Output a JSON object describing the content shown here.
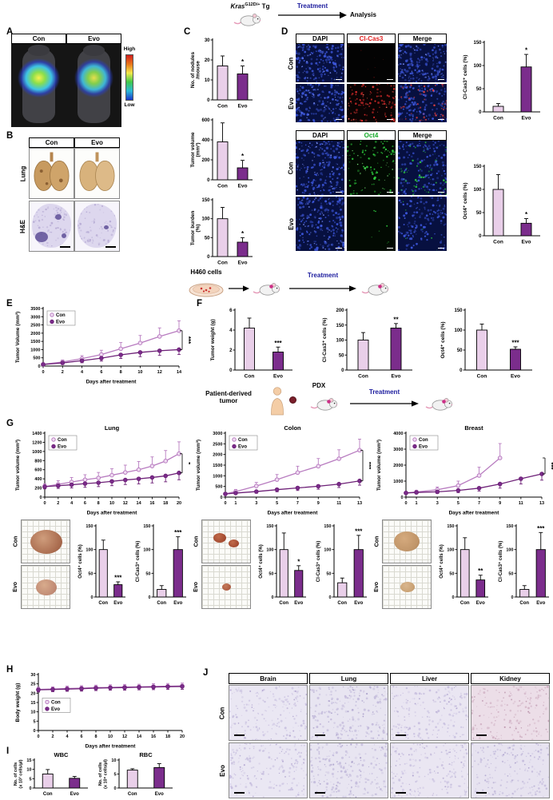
{
  "colors": {
    "con_fill": "#e9cfe9",
    "evo_fill": "#7b2d8c",
    "con_line": "#b87cc0",
    "evo_line": "#6d2077",
    "con_marker": "#f0dcf2",
    "axis": "#000000",
    "treatment_blue": "#1c1c9e",
    "clcas3_red": "#e32121",
    "oct4_green": "#16a82a"
  },
  "panels": {
    "A": "A",
    "B": "B",
    "C": "C",
    "D": "D",
    "E": "E",
    "F": "F",
    "G": "G",
    "H": "H",
    "I": "I",
    "J": "J"
  },
  "schematic_top": {
    "kras_italic": "Kras",
    "kras_sup": "G12D/+",
    "kras_tail": " Tg",
    "treatment": "Treatment",
    "analysis": "Analysis"
  },
  "schematic_mid": {
    "cells": "H460 cells",
    "treatment": "Treatment"
  },
  "schematic_pdx": {
    "source_line1": "Patient-derived",
    "source_line2": "tumor",
    "pdx": "PDX",
    "treatment": "Treatment"
  },
  "panelA": {
    "col_headers": [
      "Con",
      "Evo"
    ],
    "scale_high": "High",
    "scale_low": "Low"
  },
  "panelB": {
    "col_headers": [
      "Con",
      "Evo"
    ],
    "row_labels": [
      "Lung",
      "H&E"
    ]
  },
  "panelD": {
    "upper_headers": [
      "DAPI",
      "Cl-Cas3",
      "Merge"
    ],
    "lower_headers": [
      "DAPI",
      "Oct4",
      "Merge"
    ],
    "row_labels": [
      "Con",
      "Evo"
    ]
  },
  "panelG": {
    "photo_row_labels": [
      "Con",
      "Evo"
    ]
  },
  "panelJ": {
    "col_headers": [
      "Brain",
      "Lung",
      "Liver",
      "Kidney"
    ],
    "row_labels": [
      "Con",
      "Evo"
    ]
  },
  "chart_data": [
    {
      "id": "c_nodules",
      "type": "bar",
      "ylabel": "No. of nodules",
      "ylabel2": "/mouse",
      "ylim": [
        0,
        30
      ],
      "yticks": [
        0,
        10,
        20,
        30
      ],
      "categories": [
        "Con",
        "Evo"
      ],
      "values": [
        17,
        13
      ],
      "errors": [
        5,
        4
      ],
      "sig": "*",
      "ml": 30,
      "mr": 8,
      "mt": 8,
      "mb": 15
    },
    {
      "id": "c_volume",
      "type": "bar",
      "ylabel": "Tumor volume",
      "ylabel2": "(mm³)",
      "ylim": [
        0,
        600
      ],
      "yticks": [
        0,
        200,
        400,
        600
      ],
      "categories": [
        "Con",
        "Evo"
      ],
      "values": [
        380,
        120
      ],
      "errors": [
        190,
        75
      ],
      "sig": "*",
      "ml": 30,
      "mr": 8,
      "mt": 8,
      "mb": 15
    },
    {
      "id": "c_burden",
      "type": "bar",
      "ylabel": "Tumor burden",
      "ylabel2": "(%)",
      "ylim": [
        0,
        150
      ],
      "yticks": [
        0,
        50,
        100,
        150
      ],
      "categories": [
        "Con",
        "Evo"
      ],
      "values": [
        100,
        38
      ],
      "errors": [
        30,
        12
      ],
      "sig": "*",
      "ml": 30,
      "mr": 8,
      "mt": 8,
      "mb": 15
    },
    {
      "id": "d_clcas3",
      "type": "bar",
      "ylabel": "Cl-Cas3⁺ cells (%)",
      "ylim": [
        0,
        150
      ],
      "yticks": [
        0,
        50,
        100,
        150
      ],
      "categories": [
        "Con",
        "Evo"
      ],
      "values": [
        12,
        97
      ],
      "errors": [
        6,
        27
      ],
      "sig": "*",
      "ml": 32,
      "mr": 16,
      "mt": 8,
      "mb": 15
    },
    {
      "id": "d_oct4",
      "type": "bar",
      "ylabel": "Oct4⁺ cells (%)",
      "ylim": [
        0,
        150
      ],
      "yticks": [
        0,
        50,
        100,
        150
      ],
      "categories": [
        "Con",
        "Evo"
      ],
      "values": [
        100,
        27
      ],
      "errors": [
        32,
        10
      ],
      "sig": "*",
      "ml": 32,
      "mr": 16,
      "mt": 8,
      "mb": 15
    },
    {
      "id": "e_volume",
      "type": "line",
      "ylabel": "Tumor Volume (mm³)",
      "xlabel": "Days after treatment",
      "x": [
        0,
        2,
        4,
        6,
        8,
        10,
        12,
        14
      ],
      "ylim": [
        0,
        3500
      ],
      "yticks": [
        0,
        500,
        1000,
        1500,
        2000,
        2500,
        3000,
        3500
      ],
      "series": [
        {
          "name": "Con",
          "values": [
            100,
            250,
            450,
            700,
            1050,
            1400,
            1800,
            2150
          ],
          "errors": [
            60,
            120,
            180,
            260,
            380,
            460,
            520,
            600
          ]
        },
        {
          "name": "Evo",
          "values": [
            100,
            190,
            330,
            480,
            680,
            830,
            930,
            1000
          ],
          "errors": [
            50,
            90,
            130,
            180,
            220,
            260,
            280,
            300
          ]
        }
      ],
      "sig": "***",
      "legend": true,
      "legend_pos": "tl",
      "ml": 40,
      "mr": 16,
      "mt": 6,
      "mb": 24,
      "tfs": 5.5
    },
    {
      "id": "f_weight",
      "type": "bar",
      "ylabel": "Tumor weight (g)",
      "ylim": [
        0,
        6
      ],
      "yticks": [
        0,
        2,
        4,
        6
      ],
      "categories": [
        "Con",
        "Evo"
      ],
      "values": [
        4.2,
        1.8
      ],
      "errors": [
        1.0,
        0.5
      ],
      "sig": "***",
      "ml": 36,
      "mr": 26,
      "mt": 8,
      "mb": 15
    },
    {
      "id": "f_clcas3",
      "type": "bar",
      "ylabel": "Cl-Cas3⁺ cells (%)",
      "ylim": [
        0,
        200
      ],
      "yticks": [
        0,
        50,
        100,
        150,
        200
      ],
      "categories": [
        "Con",
        "Evo"
      ],
      "values": [
        100,
        140
      ],
      "errors": [
        25,
        15
      ],
      "sig": "**",
      "ml": 36,
      "mr": 26,
      "mt": 8,
      "mb": 15
    },
    {
      "id": "f_oct4",
      "type": "bar",
      "ylabel": "Oct4⁺ cells (%)",
      "ylim": [
        0,
        150
      ],
      "yticks": [
        0,
        50,
        100,
        150
      ],
      "categories": [
        "Con",
        "Evo"
      ],
      "values": [
        100,
        52
      ],
      "errors": [
        15,
        6
      ],
      "sig": "***",
      "ml": 36,
      "mr": 26,
      "mt": 8,
      "mb": 15
    },
    {
      "id": "g_lung",
      "type": "line",
      "title": "Lung",
      "ylabel": "Tumor volume (mm³)",
      "xlabel": "Days after treatment",
      "x": [
        0,
        2,
        4,
        6,
        8,
        10,
        12,
        14,
        16,
        18,
        20
      ],
      "ylim": [
        0,
        1400
      ],
      "yticks": [
        0,
        200,
        400,
        600,
        800,
        1000,
        1200,
        1400
      ],
      "series": [
        {
          "name": "Con",
          "values": [
            230,
            280,
            330,
            380,
            420,
            480,
            540,
            600,
            680,
            790,
            950
          ],
          "errors": [
            60,
            80,
            100,
            110,
            120,
            140,
            160,
            180,
            200,
            230,
            260
          ]
        },
        {
          "name": "Evo",
          "values": [
            230,
            250,
            270,
            295,
            315,
            345,
            375,
            400,
            430,
            465,
            530
          ],
          "errors": [
            50,
            60,
            70,
            80,
            85,
            95,
            100,
            110,
            120,
            130,
            150
          ]
        }
      ],
      "sig": "*",
      "legend": true,
      "legend_pos": "tl",
      "ml": 42,
      "mr": 14,
      "mt": 14,
      "mb": 24,
      "tfs": 5.5
    },
    {
      "id": "g_colon",
      "type": "line",
      "title": "Colon",
      "ylabel": "Tumor volume (mm³)",
      "xlabel": "Days after treatment",
      "x": [
        0,
        1,
        3,
        5,
        7,
        9,
        11,
        13
      ],
      "ylim": [
        0,
        3000
      ],
      "yticks": [
        0,
        500,
        1000,
        1500,
        2000,
        2500,
        3000
      ],
      "series": [
        {
          "name": "Con",
          "values": [
            150,
            260,
            520,
            820,
            1150,
            1450,
            1800,
            2200
          ],
          "errors": [
            60,
            100,
            170,
            240,
            300,
            360,
            420,
            520
          ]
        },
        {
          "name": "Evo",
          "values": [
            150,
            190,
            260,
            350,
            430,
            510,
            610,
            760
          ],
          "errors": [
            40,
            60,
            80,
            100,
            120,
            140,
            160,
            200
          ]
        }
      ],
      "sig": "***",
      "legend": true,
      "legend_pos": "tl",
      "ml": 42,
      "mr": 14,
      "mt": 14,
      "mb": 24,
      "tfs": 5.5
    },
    {
      "id": "g_breast",
      "type": "line",
      "title": "Breast",
      "ylabel": "Tumor volume (mm³)",
      "xlabel": "Days after treatment",
      "x": [
        0,
        1,
        3,
        5,
        7,
        9,
        11,
        13
      ],
      "ylim": [
        0,
        4000
      ],
      "yticks": [
        0,
        1000,
        2000,
        3000,
        4000
      ],
      "series": [
        {
          "name": "Con",
          "values": [
            260,
            320,
            460,
            720,
            1350,
            2450,
            null,
            null
          ],
          "errors": [
            80,
            110,
            170,
            280,
            520,
            900,
            null,
            null
          ]
        },
        {
          "name": "Evo",
          "values": [
            260,
            290,
            330,
            420,
            560,
            820,
            1150,
            1450
          ],
          "errors": [
            60,
            80,
            100,
            140,
            180,
            260,
            330,
            390
          ]
        }
      ],
      "sig": "***",
      "legend": true,
      "legend_pos": "tl",
      "ml": 42,
      "mr": 14,
      "mt": 14,
      "mb": 24,
      "tfs": 5.5
    },
    {
      "id": "g_lung_oct4",
      "type": "bar",
      "ylabel": "Oct4⁺ cells (%)",
      "ylim": [
        0,
        150
      ],
      "yticks": [
        0,
        50,
        100,
        150
      ],
      "categories": [
        "Con",
        "Evo"
      ],
      "values": [
        100,
        26
      ],
      "errors": [
        20,
        6
      ],
      "sig": "***",
      "ml": 28,
      "mr": 5,
      "mt": 8,
      "mb": 15,
      "tfs": 5.5,
      "lfs": 6,
      "cfs": 6
    },
    {
      "id": "g_lung_clcas3",
      "type": "bar",
      "ylabel": "Cl-Cas3⁺ cells (%)",
      "ylim": [
        0,
        150
      ],
      "yticks": [
        0,
        50,
        100,
        150
      ],
      "categories": [
        "Con",
        "Evo"
      ],
      "values": [
        16,
        100
      ],
      "errors": [
        8,
        27
      ],
      "sig": "***",
      "ml": 28,
      "mr": 5,
      "mt": 8,
      "mb": 15,
      "tfs": 5.5,
      "lfs": 6,
      "cfs": 6
    },
    {
      "id": "g_colon_oct4",
      "type": "bar",
      "ylabel": "Oct4⁺ cells (%)",
      "ylim": [
        0,
        150
      ],
      "yticks": [
        0,
        50,
        100,
        150
      ],
      "categories": [
        "Con",
        "Evo"
      ],
      "values": [
        100,
        56
      ],
      "errors": [
        35,
        10
      ],
      "sig": "*",
      "ml": 28,
      "mr": 5,
      "mt": 8,
      "mb": 15,
      "tfs": 5.5,
      "lfs": 6,
      "cfs": 6
    },
    {
      "id": "g_colon_clcas3",
      "type": "bar",
      "ylabel": "Cl-Cas3⁺ cells (%)",
      "ylim": [
        0,
        150
      ],
      "yticks": [
        0,
        50,
        100,
        150
      ],
      "categories": [
        "Con",
        "Evo"
      ],
      "values": [
        30,
        100
      ],
      "errors": [
        10,
        30
      ],
      "sig": "***",
      "ml": 28,
      "mr": 5,
      "mt": 8,
      "mb": 15,
      "tfs": 5.5,
      "lfs": 6,
      "cfs": 6
    },
    {
      "id": "g_breast_oct4",
      "type": "bar",
      "ylabel": "Oct4⁺ cells (%)",
      "ylim": [
        0,
        150
      ],
      "yticks": [
        0,
        50,
        100,
        150
      ],
      "categories": [
        "Con",
        "Evo"
      ],
      "values": [
        100,
        36
      ],
      "errors": [
        25,
        10
      ],
      "sig": "**",
      "ml": 28,
      "mr": 5,
      "mt": 8,
      "mb": 15,
      "tfs": 5.5,
      "lfs": 6,
      "cfs": 6
    },
    {
      "id": "g_breast_clcas3",
      "type": "bar",
      "ylabel": "Cl-Cas3⁺ cells (%)",
      "ylim": [
        0,
        150
      ],
      "yticks": [
        0,
        50,
        100,
        150
      ],
      "categories": [
        "Con",
        "Evo"
      ],
      "values": [
        16,
        100
      ],
      "errors": [
        8,
        36
      ],
      "sig": "***",
      "ml": 28,
      "mr": 5,
      "mt": 8,
      "mb": 15,
      "tfs": 5.5,
      "lfs": 6,
      "cfs": 6
    },
    {
      "id": "h_weight",
      "type": "line",
      "ylabel": "Body weight (g)",
      "xlabel": "Days after treatment",
      "x": [
        0,
        2,
        4,
        6,
        8,
        10,
        12,
        14,
        16,
        18,
        20
      ],
      "ylim": [
        0,
        30
      ],
      "yticks": [
        0,
        5,
        10,
        15,
        20,
        25,
        30
      ],
      "series": [
        {
          "name": "Con",
          "values": [
            22,
            22.2,
            22.5,
            22.7,
            23,
            23.1,
            23.3,
            23.4,
            23.6,
            23.7,
            23.9
          ],
          "errors": [
            1.2,
            1.2,
            1.3,
            1.3,
            1.3,
            1.4,
            1.4,
            1.4,
            1.5,
            1.5,
            1.5
          ]
        },
        {
          "name": "Evo",
          "values": [
            21.8,
            22,
            22.2,
            22.4,
            22.7,
            22.9,
            23,
            23.2,
            23.3,
            23.5,
            23.6
          ],
          "errors": [
            1.2,
            1.2,
            1.2,
            1.3,
            1.3,
            1.3,
            1.4,
            1.4,
            1.4,
            1.5,
            1.5
          ]
        }
      ],
      "legend": true,
      "legend_pos": "ml",
      "ml": 34,
      "mr": 12,
      "mt": 6,
      "mb": 24,
      "tfs": 5.5
    },
    {
      "id": "i_wbc",
      "type": "bar",
      "title": "WBC",
      "ylabel": "No. of cells",
      "ylabel2": "(x 10³ cells/µl)",
      "ylim": [
        0,
        15
      ],
      "yticks": [
        0,
        5,
        10,
        15
      ],
      "categories": [
        "Con",
        "Evo"
      ],
      "values": [
        7.5,
        5.2
      ],
      "errors": [
        2.4,
        1.0
      ],
      "ml": 27,
      "mr": 8,
      "mt": 11,
      "mb": 14,
      "tfs": 5.5,
      "lfs": 5.5,
      "cfs": 6,
      "ylx": 5
    },
    {
      "id": "i_rbc",
      "type": "bar",
      "title": "RBC",
      "ylabel": "No. of cells",
      "ylabel2": "(x 10⁶ cells/µl)",
      "ylim": [
        0,
        10
      ],
      "yticks": [
        0,
        5,
        10
      ],
      "categories": [
        "Con",
        "Evo"
      ],
      "values": [
        6.4,
        7.3
      ],
      "errors": [
        0.5,
        1.4
      ],
      "ml": 27,
      "mr": 8,
      "mt": 11,
      "mb": 14,
      "tfs": 5.5,
      "lfs": 5.5,
      "cfs": 6,
      "ylx": 5
    }
  ]
}
